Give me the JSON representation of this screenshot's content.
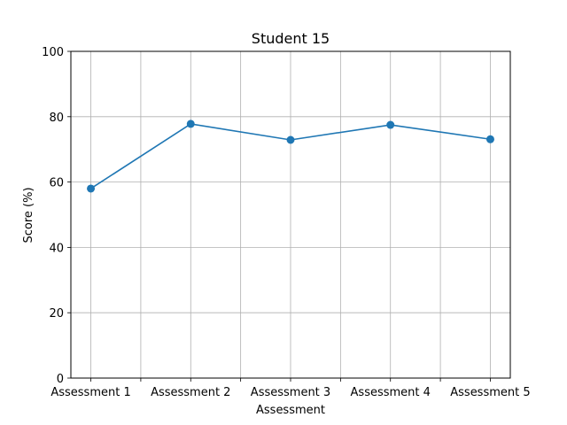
{
  "chart_data": {
    "type": "line",
    "title": "Student 15",
    "xlabel": "Assessment",
    "ylabel": "Score (%)",
    "categories": [
      "Assessment 1",
      "Assessment 2",
      "Assessment 3",
      "Assessment 4",
      "Assessment 5"
    ],
    "series": [
      {
        "values": [
          58.0,
          77.8,
          72.9,
          77.5,
          73.1
        ],
        "color": "#1f77b4",
        "marker": "circle"
      }
    ],
    "ylim": [
      0,
      100
    ],
    "yticks": [
      0,
      20,
      40,
      60,
      80,
      100
    ],
    "xticks": [
      1,
      1.5,
      2,
      2.5,
      3,
      3.5,
      4,
      4.5,
      5
    ],
    "xlim": [
      0.8,
      5.2
    ],
    "grid": true,
    "grid_color": "#b0b0b0",
    "axis_color": "#000000"
  }
}
